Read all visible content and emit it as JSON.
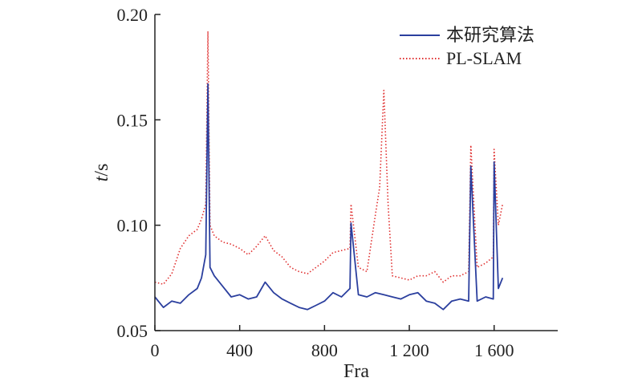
{
  "chart_data": {
    "type": "line",
    "xlabel": "Fra",
    "ylabel_italic": "t",
    "ylabel_rest": "/s",
    "xlim": [
      0,
      1900
    ],
    "ylim": [
      0.05,
      0.2
    ],
    "x_ticks": [
      0,
      400,
      800,
      1200,
      1600
    ],
    "x_tick_labels": [
      "0",
      "400",
      "800",
      "1 200",
      "1 600"
    ],
    "y_ticks": [
      0.05,
      0.1,
      0.15,
      0.2
    ],
    "y_tick_labels": [
      "0.05",
      "0.10",
      "0.15",
      "0.20"
    ],
    "grid": false,
    "legend_position": "top-right",
    "series": [
      {
        "name": "本研究算法",
        "color": "#2b3f9e",
        "style": "solid",
        "x": [
          0,
          40,
          80,
          120,
          160,
          200,
          220,
          240,
          250,
          260,
          280,
          320,
          360,
          400,
          440,
          480,
          520,
          560,
          600,
          640,
          680,
          720,
          760,
          800,
          840,
          880,
          920,
          925,
          960,
          1000,
          1040,
          1080,
          1120,
          1160,
          1200,
          1240,
          1280,
          1320,
          1360,
          1400,
          1440,
          1480,
          1490,
          1520,
          1560,
          1596,
          1600,
          1620,
          1640
        ],
        "y": [
          0.066,
          0.061,
          0.064,
          0.063,
          0.067,
          0.07,
          0.075,
          0.086,
          0.167,
          0.08,
          0.076,
          0.071,
          0.066,
          0.067,
          0.065,
          0.066,
          0.073,
          0.068,
          0.065,
          0.063,
          0.061,
          0.06,
          0.062,
          0.064,
          0.068,
          0.066,
          0.07,
          0.101,
          0.067,
          0.066,
          0.068,
          0.067,
          0.066,
          0.065,
          0.067,
          0.068,
          0.064,
          0.063,
          0.06,
          0.064,
          0.065,
          0.064,
          0.128,
          0.064,
          0.066,
          0.065,
          0.13,
          0.07,
          0.075
        ]
      },
      {
        "name": "PL-SLAM",
        "color": "#e03030",
        "style": "dotted",
        "x": [
          0,
          40,
          80,
          120,
          160,
          200,
          220,
          240,
          250,
          260,
          280,
          320,
          360,
          400,
          440,
          480,
          520,
          560,
          600,
          640,
          680,
          720,
          760,
          800,
          840,
          880,
          920,
          925,
          960,
          1000,
          1040,
          1060,
          1080,
          1100,
          1120,
          1160,
          1200,
          1240,
          1280,
          1320,
          1360,
          1400,
          1440,
          1480,
          1490,
          1520,
          1560,
          1596,
          1600,
          1620,
          1640
        ],
        "y": [
          0.073,
          0.072,
          0.077,
          0.089,
          0.095,
          0.098,
          0.103,
          0.11,
          0.192,
          0.1,
          0.095,
          0.092,
          0.091,
          0.089,
          0.086,
          0.09,
          0.095,
          0.088,
          0.085,
          0.08,
          0.078,
          0.077,
          0.08,
          0.083,
          0.087,
          0.088,
          0.089,
          0.11,
          0.08,
          0.078,
          0.105,
          0.118,
          0.164,
          0.11,
          0.076,
          0.075,
          0.074,
          0.076,
          0.076,
          0.078,
          0.073,
          0.076,
          0.076,
          0.078,
          0.138,
          0.08,
          0.082,
          0.085,
          0.136,
          0.1,
          0.11
        ]
      }
    ]
  }
}
